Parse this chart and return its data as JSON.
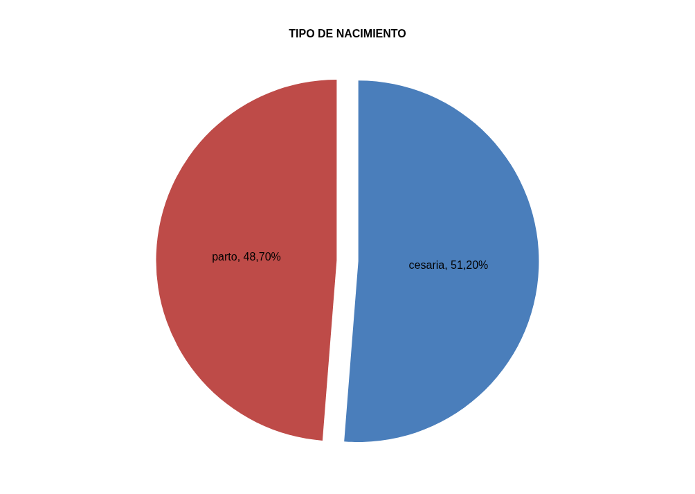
{
  "chart_data": {
    "type": "pie",
    "title": "TIPO DE NACIMIENTO",
    "categories": [
      "cesaria",
      "parto"
    ],
    "values": [
      51.2,
      48.7
    ],
    "value_labels": [
      "51,20%",
      "48,70%"
    ],
    "colors": [
      "#4a7ebb",
      "#be4b48"
    ],
    "legend": false
  }
}
